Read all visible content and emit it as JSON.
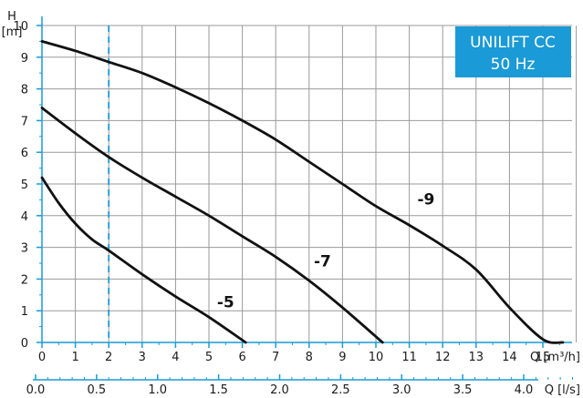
{
  "chart_data": {
    "type": "line",
    "title": "UNILIFT CC",
    "subtitle": "50 Hz",
    "ylabel_top": "H",
    "ylabel_unit": "[m]",
    "xlabel": "Q [m³/h]",
    "xlabel_secondary": "Q [l/s]",
    "xlim": [
      0,
      16
    ],
    "ylim": [
      0,
      10
    ],
    "xlim_secondary": [
      0,
      4.444
    ],
    "x_ticks": [
      0,
      1,
      2,
      3,
      4,
      5,
      6,
      7,
      8,
      9,
      10,
      11,
      12,
      13,
      14,
      15
    ],
    "y_ticks": [
      0,
      1,
      2,
      3,
      4,
      5,
      6,
      7,
      8,
      9,
      10
    ],
    "x_ticks_secondary": [
      "0.0",
      "0.5",
      "1.0",
      "1.5",
      "2.0",
      "2.5",
      "3.0",
      "3.5",
      "4.0"
    ],
    "grid": true,
    "reference_line": {
      "x": 2,
      "style": "dashed",
      "color": "#1a9ad6"
    },
    "series": [
      {
        "name": "-5",
        "label_at": [
          5.5,
          1.1
        ],
        "x": [
          0,
          0.5,
          1,
          1.5,
          2,
          3,
          4,
          5,
          6.1
        ],
        "y": [
          5.2,
          4.4,
          3.75,
          3.25,
          2.9,
          2.15,
          1.45,
          0.8,
          0.0
        ]
      },
      {
        "name": "-7",
        "label_at": [
          8.4,
          2.4
        ],
        "x": [
          0,
          1,
          2,
          3,
          4,
          5,
          6,
          7,
          8,
          9,
          10.2
        ],
        "y": [
          7.4,
          6.6,
          5.85,
          5.2,
          4.6,
          4.0,
          3.35,
          2.7,
          1.95,
          1.1,
          0.0
        ]
      },
      {
        "name": "-9",
        "label_at": [
          11.5,
          4.35
        ],
        "x": [
          0,
          1,
          2,
          3,
          4,
          5,
          6,
          7,
          8,
          9,
          10,
          11,
          12,
          13,
          14,
          15,
          15.6
        ],
        "y": [
          9.5,
          9.2,
          8.85,
          8.5,
          8.05,
          7.55,
          7.0,
          6.4,
          5.7,
          5.0,
          4.3,
          3.7,
          3.05,
          2.3,
          1.1,
          0.1,
          0.0
        ]
      }
    ],
    "colors": {
      "grid": "#9a9a9a",
      "curve": "#111111",
      "axis": "#1a9ad6",
      "badge": "#1a9ad6"
    }
  }
}
